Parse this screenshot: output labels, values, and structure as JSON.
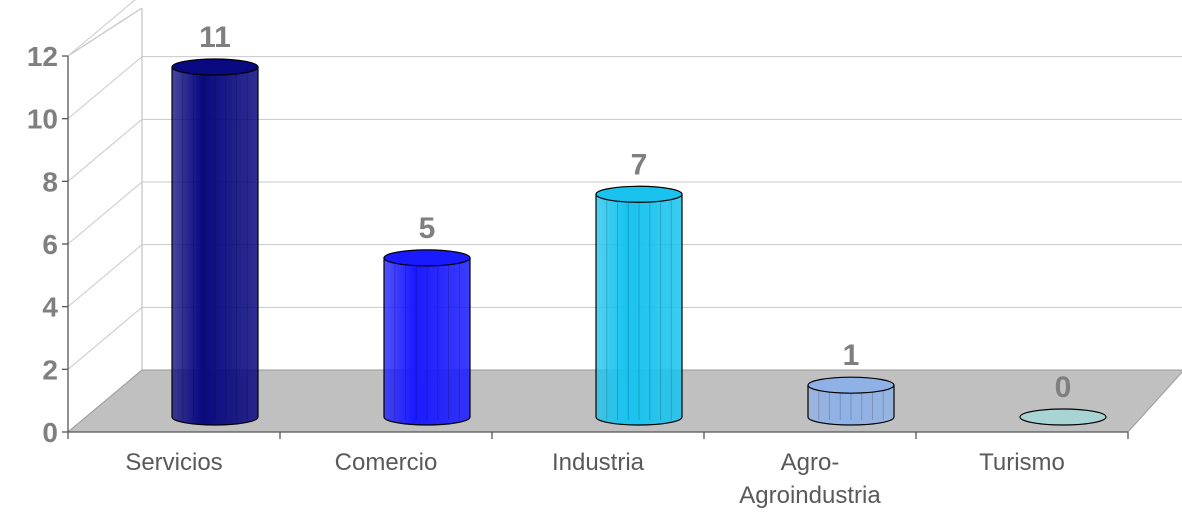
{
  "chart_data": {
    "type": "bar",
    "style": "3d-cylinder",
    "categories": [
      "Servicios",
      "Comercio",
      "Industria",
      "Agro-Agroindustria",
      "Turismo"
    ],
    "category_label_lines": [
      [
        "Servicios"
      ],
      [
        "Comercio"
      ],
      [
        "Industria"
      ],
      [
        "Agro-",
        "Agroindustria"
      ],
      [
        "Turismo"
      ]
    ],
    "values": [
      11,
      5,
      7,
      1,
      0
    ],
    "data_labels": [
      "11",
      "5",
      "7",
      "1",
      "0"
    ],
    "colors": [
      "#0a0a80",
      "#1a1aff",
      "#19c3ee",
      "#8fb1e6",
      "#a8d4d4"
    ],
    "ylim": [
      0,
      12
    ],
    "yticks": [
      "0",
      "2",
      "4",
      "6",
      "8",
      "10",
      "12"
    ],
    "grid": true,
    "legend": "none",
    "title": "",
    "xlabel": "",
    "ylabel": ""
  }
}
